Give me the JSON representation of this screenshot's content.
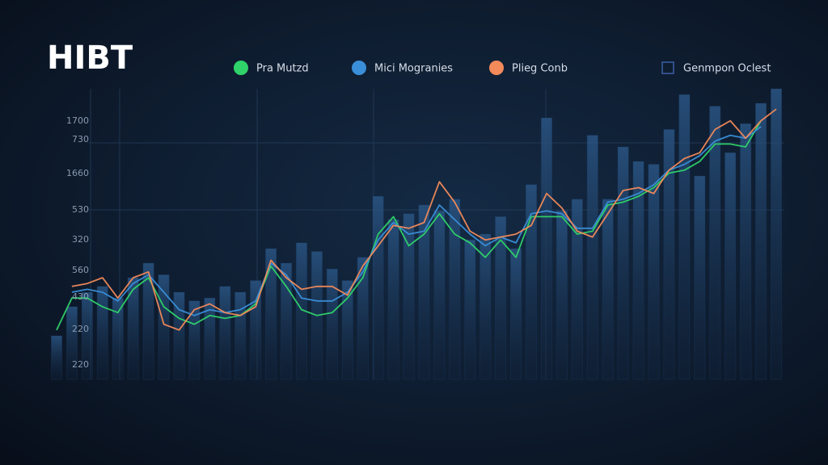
{
  "chart_data": {
    "type": "bar-line",
    "title": "HIBT",
    "y_axis_labels": [
      "1700",
      "730",
      "1660",
      "530",
      "320",
      "560",
      "430",
      "220",
      "220"
    ],
    "categories": [
      null,
      null,
      null,
      null,
      null,
      null,
      null,
      null,
      null,
      null,
      null,
      null,
      null,
      null,
      null,
      null,
      null,
      null,
      null,
      null,
      null,
      null,
      null,
      null,
      null,
      null,
      null,
      null,
      null,
      null,
      null,
      null,
      null,
      null,
      null,
      null,
      null,
      null,
      null,
      null,
      null,
      null,
      null,
      null,
      null,
      null,
      null,
      null
    ],
    "ylim": [
      0,
      100
    ],
    "series": [
      {
        "name": "Pra Mutzd",
        "kind": "line",
        "color": "#2fd36a",
        "values": [
          17,
          28,
          28,
          25,
          23,
          31,
          35,
          25,
          21,
          19,
          22,
          21,
          22,
          26,
          39,
          32,
          24,
          22,
          23,
          28,
          35,
          50,
          56,
          46,
          50,
          57,
          50,
          47,
          42,
          48,
          42,
          56,
          56,
          56,
          50,
          51,
          60,
          61,
          63,
          66,
          71,
          72,
          75,
          81,
          81,
          80,
          89,
          null
        ]
      },
      {
        "name": "Mici Mogranies",
        "kind": "line",
        "color": "#3a8fd8",
        "values": [
          null,
          30,
          31,
          30,
          27,
          33,
          36,
          30,
          24,
          22,
          24,
          23,
          24,
          27,
          40,
          36,
          28,
          27,
          27,
          30,
          37,
          48,
          54,
          50,
          51,
          60,
          55,
          50,
          46,
          49,
          47,
          57,
          58,
          57,
          52,
          52,
          61,
          62,
          64,
          67,
          72,
          74,
          77,
          82,
          84,
          83,
          87,
          null
        ]
      },
      {
        "name": "Plieg Conb",
        "kind": "line",
        "color": "#f28a5a",
        "values": [
          null,
          32,
          33,
          35,
          28,
          35,
          37,
          19,
          17,
          24,
          26,
          23,
          22,
          25,
          41,
          35,
          31,
          32,
          32,
          29,
          39,
          46,
          53,
          52,
          54,
          68,
          61,
          51,
          48,
          49,
          50,
          53,
          64,
          59,
          51,
          49,
          57,
          65,
          66,
          64,
          72,
          76,
          78,
          86,
          89,
          83,
          89,
          93
        ]
      },
      {
        "name": "Genmpon Oclest",
        "kind": "bar",
        "color": "#1f3f66",
        "values": [
          15,
          25,
          30,
          32,
          28,
          35,
          40,
          36,
          30,
          27,
          28,
          32,
          30,
          34,
          45,
          40,
          47,
          44,
          38,
          34,
          42,
          63,
          55,
          57,
          60,
          58,
          62,
          48,
          50,
          56,
          45,
          67,
          90,
          58,
          62,
          84,
          62,
          80,
          75,
          74,
          86,
          98,
          70,
          94,
          78,
          88,
          95,
          100
        ]
      }
    ]
  }
}
